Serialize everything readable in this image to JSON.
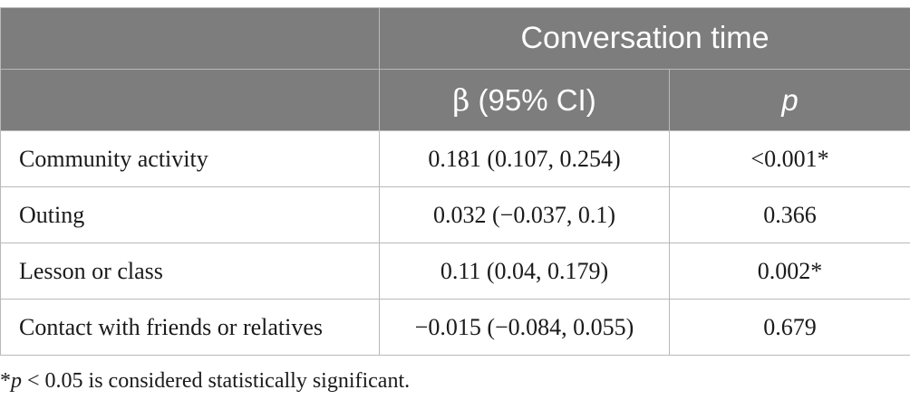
{
  "header": {
    "group_title": "Conversation time",
    "beta_symbol": "β",
    "beta_label": " (95% CI)",
    "p_label": "p"
  },
  "rows": [
    {
      "label": "Community activity",
      "beta_ci": "0.181 (0.107, 0.254)",
      "p": "<0.001*"
    },
    {
      "label": "Outing",
      "beta_ci": "0.032 (−0.037, 0.1)",
      "p": "0.366"
    },
    {
      "label": "Lesson or class",
      "beta_ci": "0.11 (0.04, 0.179)",
      "p": "0.002*"
    },
    {
      "label": "Contact with friends or relatives",
      "beta_ci": "−0.015 (−0.084, 0.055)",
      "p": "0.679"
    }
  ],
  "footnote": {
    "asterisk": "*",
    "p_symbol": "p",
    "rest": " < 0.05 is considered statistically significant."
  },
  "colors": {
    "header_bg": "#7d7d7d",
    "header_text": "#ffffff",
    "grid": "#b9b9b9"
  }
}
